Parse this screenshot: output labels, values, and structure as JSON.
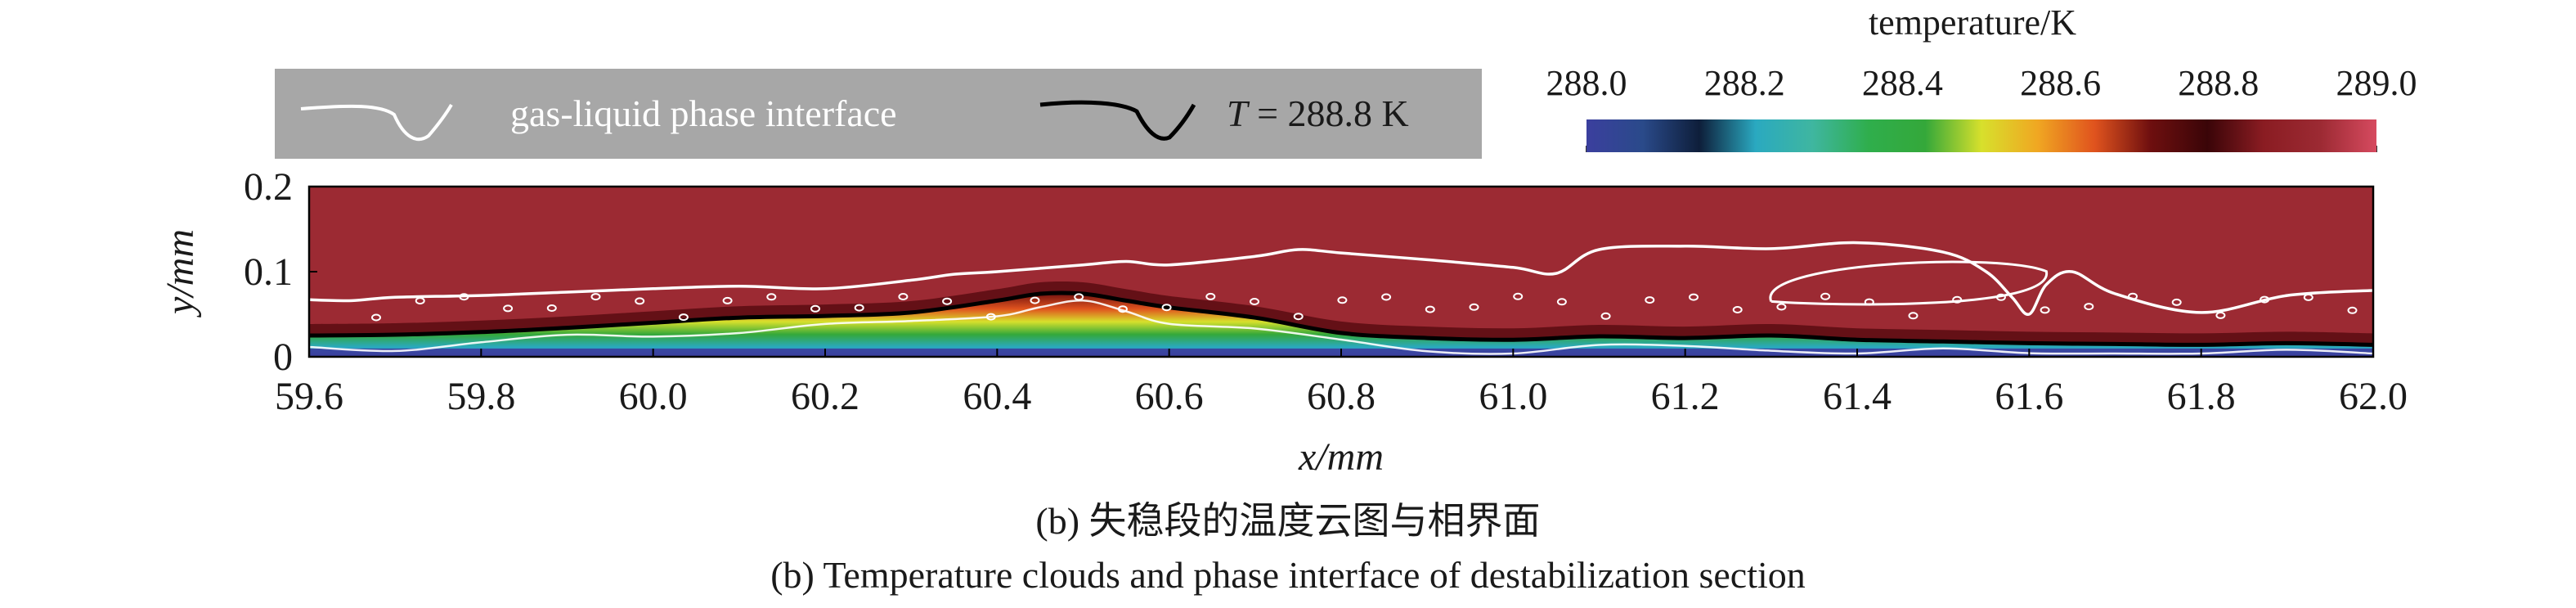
{
  "chart_data": {
    "type": "heatmap",
    "title": "",
    "xlabel": "x/mm",
    "ylabel": "y/mm",
    "xlim": [
      59.6,
      62.0
    ],
    "ylim": [
      0,
      0.2
    ],
    "x_ticks": [
      "59.6",
      "59.8",
      "60.0",
      "60.2",
      "60.4",
      "60.6",
      "60.8",
      "61.0",
      "61.2",
      "61.4",
      "61.6",
      "61.8",
      "62.0"
    ],
    "y_ticks": [
      "0",
      "0.1",
      "0.2"
    ],
    "colorbar": {
      "label": "temperature/K",
      "range": [
        288.0,
        289.0
      ],
      "ticks": [
        "288.0",
        "288.2",
        "288.4",
        "288.6",
        "288.8",
        "289.0"
      ],
      "colors": [
        "#3b3f9e",
        "#2a4a8a",
        "#0e1e3a",
        "#2aa9c0",
        "#3fb6a0",
        "#2fae4c",
        "#34a83a",
        "#d7e02c",
        "#f0a722",
        "#e0531e",
        "#6e0f0f",
        "#3a0508",
        "#8a1c22",
        "#9c2a33",
        "#d64a5f"
      ]
    },
    "background_color": "#9c2a33",
    "legend": {
      "position": "top-left",
      "entries": [
        {
          "label": "gas-liquid phase interface",
          "color": "#ffffff"
        },
        {
          "label_var": "T",
          "label_rest": " = 288.8 K",
          "color": "#000000"
        }
      ]
    },
    "series": [
      {
        "kind": "T = 288.8 K isotherm",
        "x": [
          59.6,
          59.7,
          59.8,
          59.9,
          60.0,
          60.1,
          60.2,
          60.3,
          60.4,
          60.45,
          60.5,
          60.55,
          60.6,
          60.7,
          60.8,
          60.9,
          61.0,
          61.1,
          61.2,
          61.3,
          61.4,
          61.5,
          61.6,
          61.7,
          61.8,
          61.9,
          62.0
        ],
        "y": [
          0.025,
          0.026,
          0.029,
          0.034,
          0.04,
          0.046,
          0.048,
          0.052,
          0.066,
          0.074,
          0.074,
          0.066,
          0.058,
          0.046,
          0.028,
          0.022,
          0.02,
          0.024,
          0.022,
          0.025,
          0.02,
          0.018,
          0.016,
          0.015,
          0.014,
          0.016,
          0.014
        ]
      },
      {
        "kind": "gas-liquid phase interface",
        "x": [
          59.6,
          59.65,
          59.7,
          59.8,
          59.9,
          60.0,
          60.1,
          60.2,
          60.3,
          60.35,
          60.4,
          60.5,
          60.55,
          60.6,
          60.7,
          60.75,
          60.8,
          60.9,
          61.0,
          61.05,
          61.1,
          61.2,
          61.3,
          61.4,
          61.5,
          61.55,
          61.58,
          61.6,
          61.62,
          61.65,
          61.7,
          61.8,
          61.9,
          62.0
        ],
        "y": [
          0.067,
          0.066,
          0.07,
          0.072,
          0.076,
          0.08,
          0.083,
          0.08,
          0.09,
          0.097,
          0.1,
          0.108,
          0.112,
          0.108,
          0.118,
          0.126,
          0.122,
          0.114,
          0.105,
          0.098,
          0.126,
          0.13,
          0.127,
          0.134,
          0.123,
          0.1,
          0.07,
          0.05,
          0.085,
          0.1,
          0.074,
          0.052,
          0.072,
          0.078
        ]
      }
    ]
  },
  "captions": {
    "zh": "(b) 失稳段的温度云图与相界面",
    "en": "(b) Temperature clouds and phase interface of destabilization section"
  }
}
